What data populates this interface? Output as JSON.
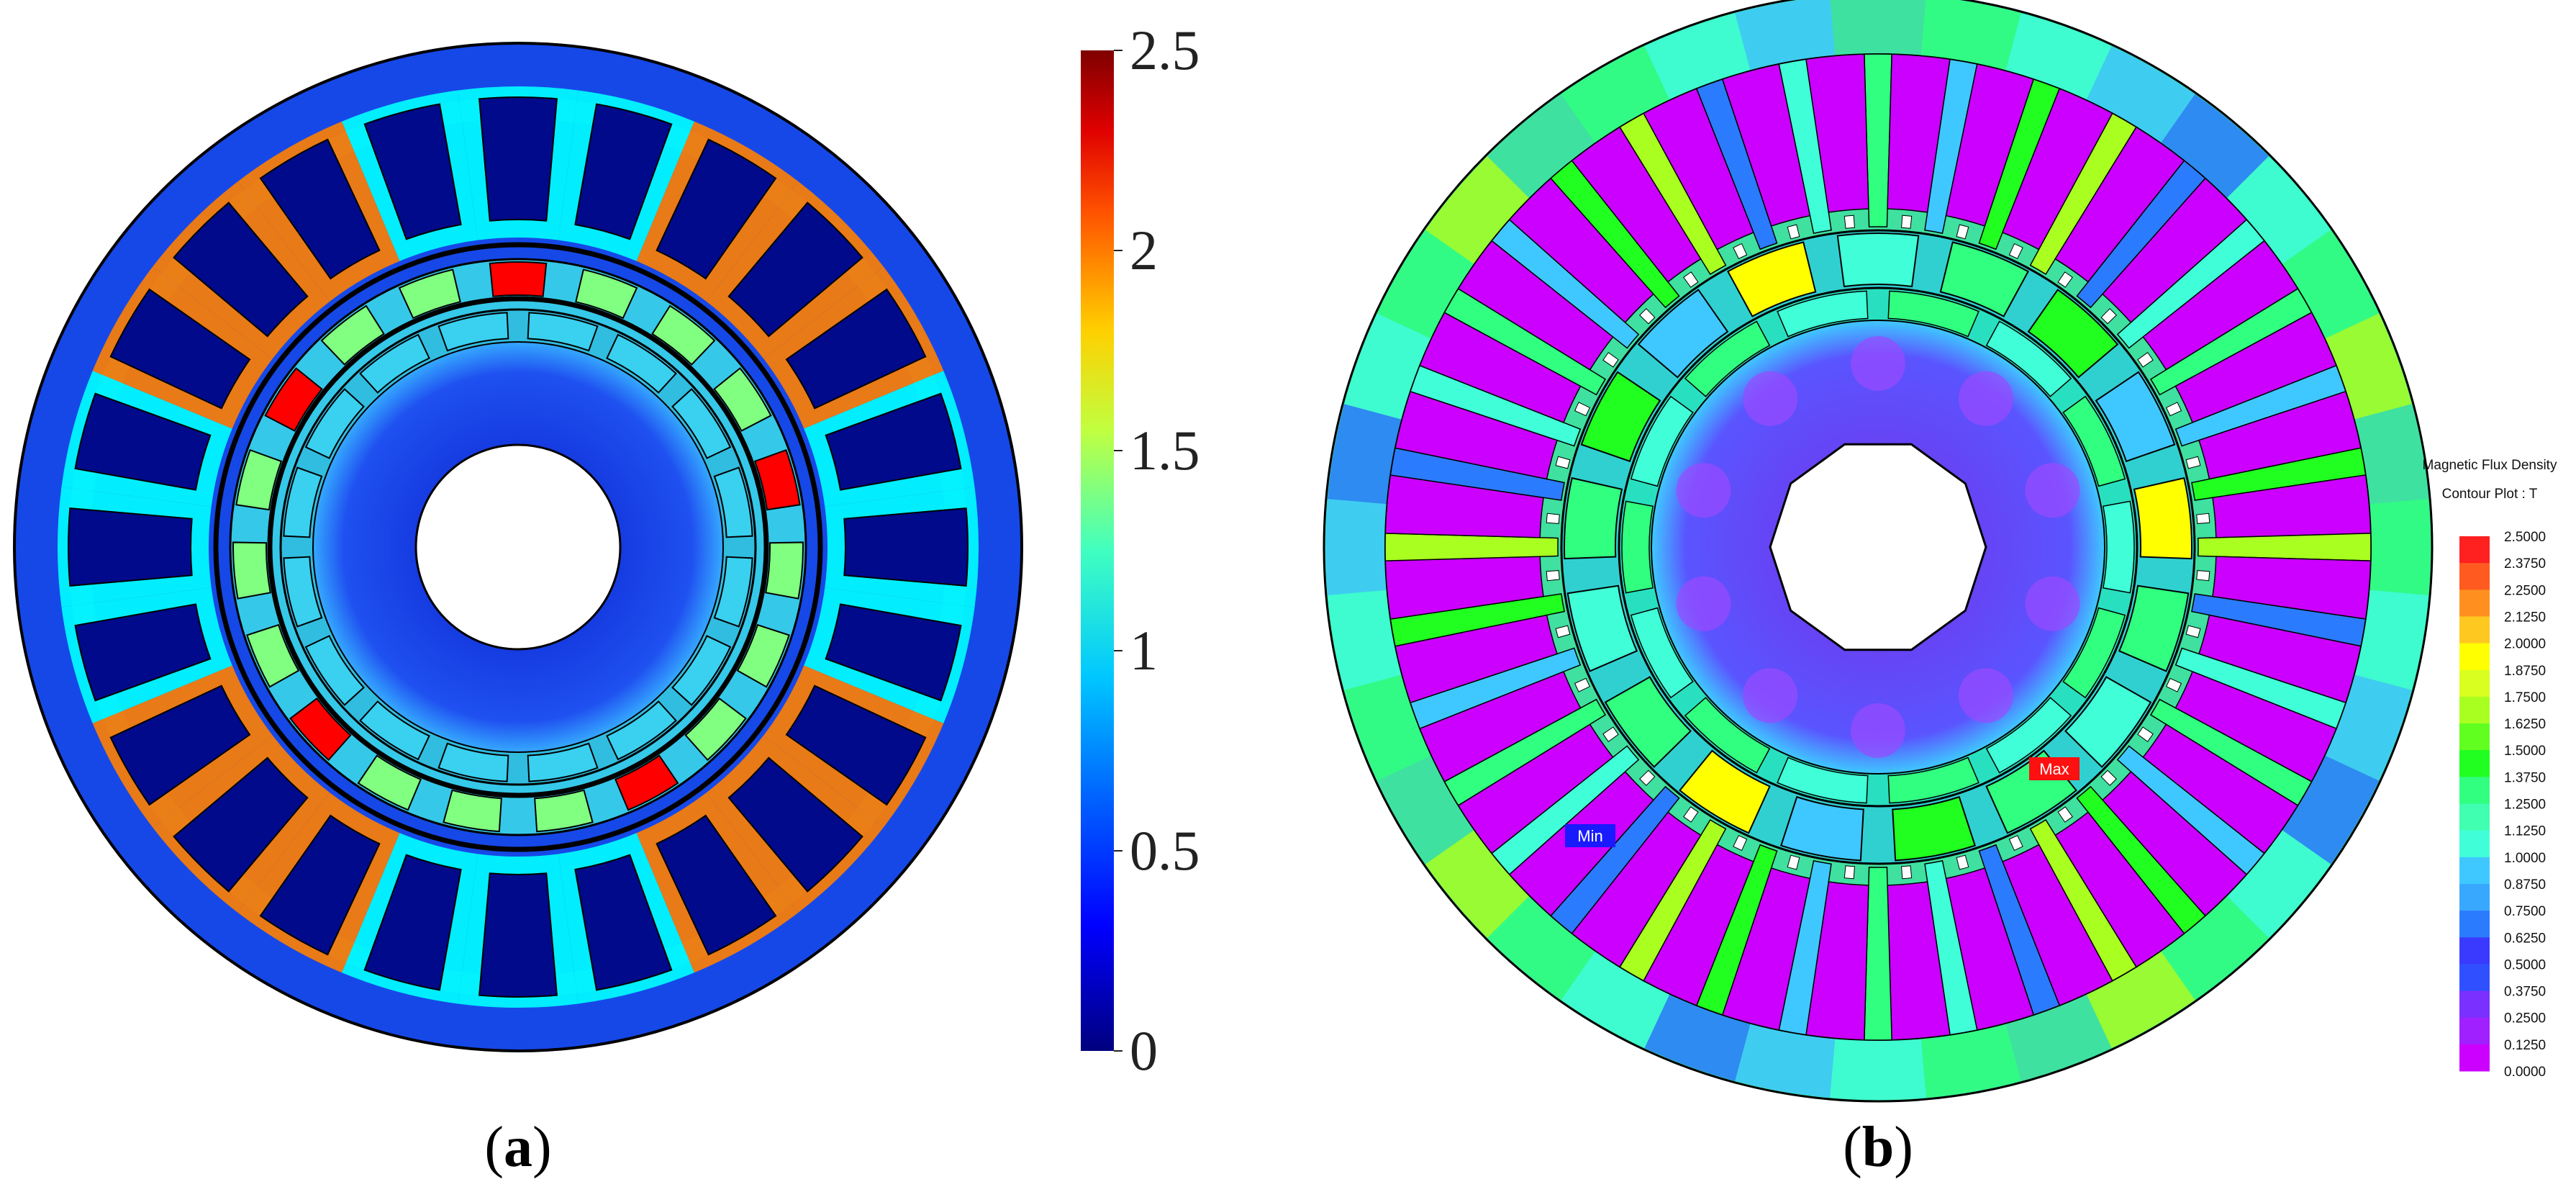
{
  "panel_a": {
    "caption": "a",
    "colorbar": {
      "ticks": [
        "2.5",
        "2",
        "1.5",
        "1",
        "0.5",
        "0"
      ],
      "min": 0,
      "max": 2.5
    }
  },
  "panel_b": {
    "caption": "b",
    "legend_title_1": "Magnetic Flux Density",
    "legend_title_2": "Contour Plot : T",
    "ticks": [
      "2.5000",
      "2.3750",
      "2.2500",
      "2.1250",
      "2.0000",
      "1.8750",
      "1.7500",
      "1.6250",
      "1.5000",
      "1.3750",
      "1.2500",
      "1.1250",
      "1.0000",
      "0.8750",
      "0.7500",
      "0.6250",
      "0.5000",
      "0.3750",
      "0.2500",
      "0.1250",
      "0.0000"
    ],
    "max_label": "Max",
    "min_label": "Min"
  },
  "colors": {
    "jet": [
      "#00007f",
      "#0000ff",
      "#0080ff",
      "#00ffff",
      "#80ff80",
      "#ffff00",
      "#ff8000",
      "#ff0000",
      "#7f0000"
    ],
    "rainbow_b": [
      "#cc00ff",
      "#7a30ff",
      "#3a3aff",
      "#2b7bff",
      "#3fc8ff",
      "#40ffd8",
      "#30ff80",
      "#20ff20",
      "#a8ff20",
      "#ffff00",
      "#ff9020",
      "#ff2020"
    ]
  }
}
